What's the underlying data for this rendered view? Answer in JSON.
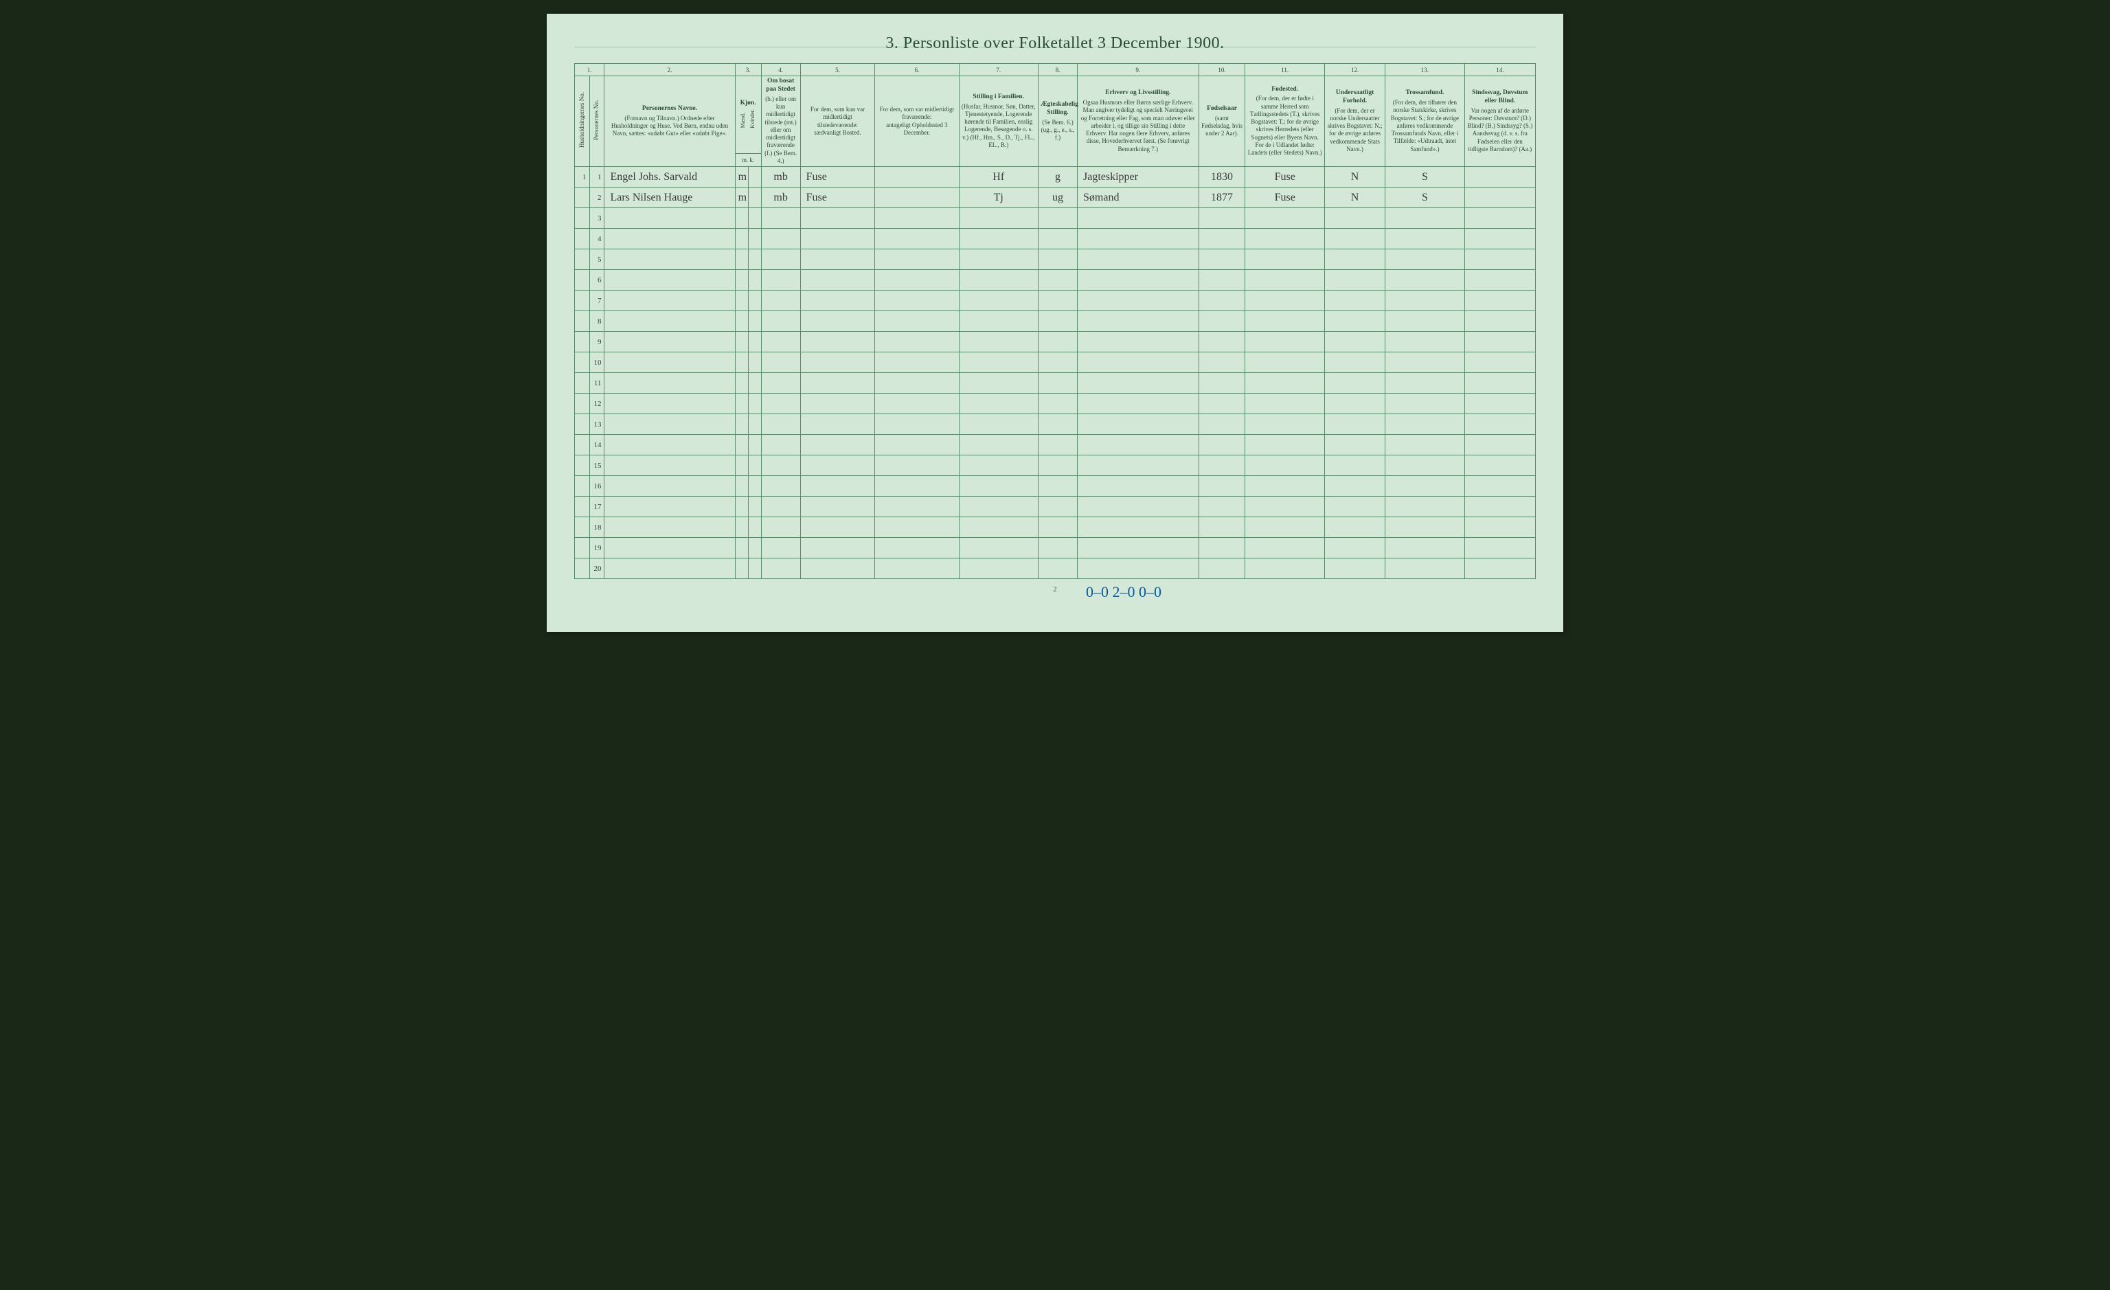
{
  "page": {
    "title": "3. Personliste over Folketallet 3 December 1900.",
    "page_number": "2",
    "background_color": "#d4e8d8",
    "border_color": "#5a8a6a",
    "text_color": "#2a4a35",
    "ink_color": "#3a3a3a",
    "footer_ink_color": "#0a5aa0",
    "footer_note": "0–0  2–0   0–0"
  },
  "columns": {
    "numbers": [
      "1.",
      "2.",
      "3.",
      "4.",
      "5.",
      "6.",
      "7.",
      "8.",
      "9.",
      "10.",
      "11.",
      "12.",
      "13.",
      "14."
    ],
    "widths_pct": [
      1.6,
      1.6,
      14,
      1.4,
      1.4,
      4.2,
      8,
      9,
      8.5,
      4.2,
      13,
      5,
      8.5,
      6.5,
      8.5,
      7.6
    ],
    "c1a": "Husholdningernes No.",
    "c1b": "Personernes No.",
    "c2_title": "Personernes Navne.",
    "c2_sub": "(Fornavn og Tilnavn.)\nOrdnede efter Husholdninger og Huse.\nVed Børn, endnu uden Navn, sættes: «udøbt Gut» eller «udøbt Pige».",
    "c3_title": "Kjøn.",
    "c3_m": "Mænd.",
    "c3_k": "Kvinder.",
    "c3_mk": "m.  k.",
    "c4_title": "Om bosat paa Stedet",
    "c4_sub": "(b.) eller om kun midlertidigt tilstede (mt.) eller om midlertidigt fraværende (f.)\n(Se Bem. 4.)",
    "c5_title": "For dem, som kun var midlertidigt tilstedeværende:",
    "c5_sub": "sædvanligt Bosted.",
    "c6_title": "For dem, som var midlertidigt fraværende:",
    "c6_sub": "antageligt Opholdssted 3 December.",
    "c7_title": "Stilling i Familien.",
    "c7_sub": "(Husfar, Husmor, Søn, Datter, Tjenestetyende, Logerende hørende til Familien, enslig Logerende, Besøgende o. s. v.)\n(Hf., Hm., S., D., Tj., FL., EL., B.)",
    "c8_title": "Ægteskabelig Stilling.",
    "c8_sub": "(Se Bem. 6.)\n(ug., g., e., s., f.)",
    "c9_title": "Erhverv og Livsstilling.",
    "c9_sub": "Ogsaa Husmors eller Børns særlige Erhverv. Man angiver tydeligt og specielt Næringsvei og Forretning eller Fag, som man udøver eller arbeider i, og tillige sin Stilling i dette Erhverv. Har nogen flere Erhverv, anføres disse, Hovederhvervet først. (Se forøvrigt Bemærkning 7.)",
    "c10_title": "Fødselsaar",
    "c10_sub": "(samt Fødselsdag, hvis under 2 Aar).",
    "c11_title": "Fødested.",
    "c11_sub": "(For dem, der er fødte i samme Herred som Tællingsstedets (T.), skrives Bogstavet: T.; for de øvrige skrives Herredets (eller Sognets) eller Byens Navn. For de i Udlandet fødte: Landets (eller Stedets) Navn.)",
    "c12_title": "Undersaatligt Forhold.",
    "c12_sub": "(For dem, der er norske Undersaatter skrives Bogstavet: N.; for de øvrige anføres vedkommende Stats Navn.)",
    "c13_title": "Trossamfund.",
    "c13_sub": "(For dem, der tilhører den norske Statskirke, skrives Bogstavet: S.; for de øvrige anføres vedkommende Trossamfunds Navn, eller i Tilfælde: «Udtraadt, intet Samfund».)",
    "c14_title": "Sindssvag, Døvstum eller Blind.",
    "c14_sub": "Var nogen af de anførte Personer: Døvstum? (D.) Blind? (B.) Sindssyg? (S.) Aandssvag (d. v. s. fra Fødselen eller den tidligste Barndom)? (Aa.)"
  },
  "rows": [
    {
      "house": "1",
      "person": "1",
      "name": "Engel Johs. Sarvald",
      "sex": "m",
      "pres": "mb",
      "home": "Fuse",
      "away": "",
      "fam": "Hf",
      "mar": "g",
      "occ": "Jagteskipper",
      "year": "1830",
      "birthplace": "Fuse",
      "nat": "N",
      "rel": "S",
      "dis": ""
    },
    {
      "house": "",
      "person": "2",
      "name": "Lars Nilsen Hauge",
      "sex": "m",
      "pres": "mb",
      "home": "Fuse",
      "away": "",
      "fam": "Tj",
      "mar": "ug",
      "occ": "Sømand",
      "year": "1877",
      "birthplace": "Fuse",
      "nat": "N",
      "rel": "S",
      "dis": ""
    }
  ],
  "empty_rows": 18
}
